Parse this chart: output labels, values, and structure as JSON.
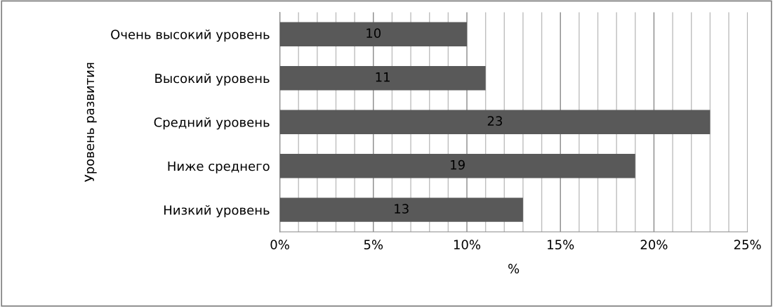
{
  "chart_data": {
    "type": "bar",
    "orientation": "horizontal",
    "categories": [
      "Очень высокий уровень",
      "Высокий уровень",
      "Средний уровень",
      "Ниже среднего",
      "Низкий уровень"
    ],
    "values": [
      10,
      11,
      23,
      19,
      13
    ],
    "color": "#595959",
    "data_labels": true,
    "xlabel": "%",
    "ylabel": "Уровень развития",
    "xlim": [
      0,
      25
    ],
    "xticks": [
      {
        "value": 0,
        "label": "0%"
      },
      {
        "value": 1,
        "label": null
      },
      {
        "value": 2,
        "label": null
      },
      {
        "value": 3,
        "label": null
      },
      {
        "value": 4,
        "label": null
      },
      {
        "value": 5,
        "label": "5%"
      },
      {
        "value": 6,
        "label": null
      },
      {
        "value": 7,
        "label": null
      },
      {
        "value": 8,
        "label": null
      },
      {
        "value": 9,
        "label": null
      },
      {
        "value": 10,
        "label": "10%"
      },
      {
        "value": 11,
        "label": null
      },
      {
        "value": 12,
        "label": null
      },
      {
        "value": 13,
        "label": null
      },
      {
        "value": 14,
        "label": null
      },
      {
        "value": 15,
        "label": "15%"
      },
      {
        "value": 16,
        "label": null
      },
      {
        "value": 17,
        "label": null
      },
      {
        "value": 18,
        "label": null
      },
      {
        "value": 19,
        "label": null
      },
      {
        "value": 20,
        "label": "20%"
      },
      {
        "value": 21,
        "label": null
      },
      {
        "value": 22,
        "label": null
      },
      {
        "value": 23,
        "label": null
      },
      {
        "value": 24,
        "label": null
      },
      {
        "value": 25,
        "label": "25%"
      }
    ],
    "grid": "x"
  }
}
